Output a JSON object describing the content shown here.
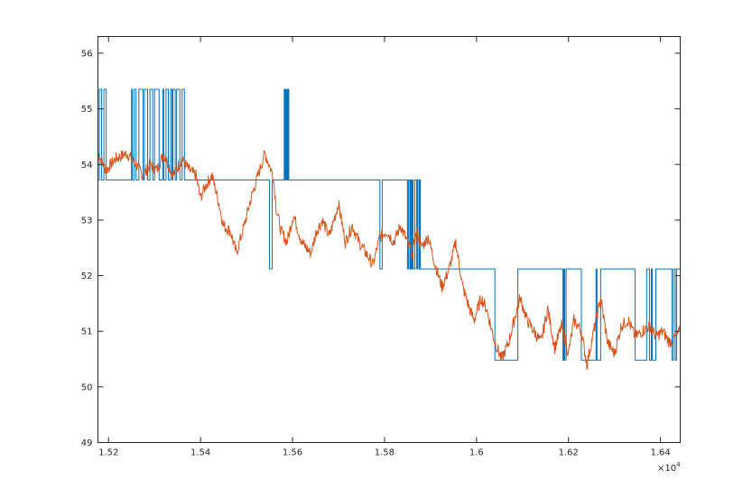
{
  "chart_data": {
    "type": "line",
    "title": "",
    "xlabel": "",
    "ylabel": "",
    "xlim": [
      15177,
      16443
    ],
    "ylim": [
      49,
      56.3
    ],
    "x_exponent_label": "×10",
    "x_exponent_power": "4",
    "x_ticks": [
      {
        "value": 15200,
        "label": "1.52"
      },
      {
        "value": 15400,
        "label": "1.54"
      },
      {
        "value": 15600,
        "label": "1.56"
      },
      {
        "value": 15800,
        "label": "1.58"
      },
      {
        "value": 16000,
        "label": "1.6"
      },
      {
        "value": 16200,
        "label": "1.62"
      },
      {
        "value": 16400,
        "label": "1.64"
      }
    ],
    "y_ticks": [
      {
        "value": 49,
        "label": "49"
      },
      {
        "value": 50,
        "label": "50"
      },
      {
        "value": 51,
        "label": "51"
      },
      {
        "value": 52,
        "label": "52"
      },
      {
        "value": 53,
        "label": "53"
      },
      {
        "value": 54,
        "label": "54"
      },
      {
        "value": 55,
        "label": "55"
      },
      {
        "value": 56,
        "label": "56"
      }
    ],
    "grid": false,
    "colors": {
      "series1": "#0072BD",
      "series2": "#D95319"
    },
    "series": [
      {
        "type": "step",
        "x": [
          15177,
          15180,
          15185,
          15188,
          15190,
          15195,
          15200,
          15206,
          15210,
          15250,
          15252,
          15256,
          15260,
          15266,
          15270,
          15275,
          15278,
          15280,
          15285,
          15290,
          15296,
          15300,
          15305,
          15310,
          15318,
          15320,
          15325,
          15330,
          15335,
          15338,
          15340,
          15345,
          15348,
          15350,
          15355,
          15360,
          15365,
          15370,
          15375,
          15385,
          15400,
          15548,
          15550,
          15556,
          15560,
          15580,
          15582,
          15584,
          15586,
          15588,
          15590,
          15592,
          15596,
          15600,
          15790,
          15795,
          15798,
          15800,
          15810,
          15850,
          15852,
          15855,
          15857,
          15858,
          15860,
          15862,
          15866,
          15870,
          15872,
          15874,
          15875,
          15876,
          15878,
          15880,
          15882,
          15885,
          15890,
          15900,
          15950,
          16040,
          16045,
          16050,
          16090,
          16100,
          16110,
          16186,
          16188,
          16190,
          16192,
          16195,
          16200,
          16226,
          16228,
          16260,
          16262,
          16268,
          16270,
          16300,
          16345,
          16370,
          16374,
          16376,
          16380,
          16382,
          16390,
          16400,
          16405,
          16412,
          16415,
          16420,
          16425,
          16428,
          16432,
          16435,
          16440,
          16443
        ],
        "y": [
          53.72,
          55.35,
          53.72,
          53.72,
          55.35,
          53.72,
          53.72,
          53.72,
          53.72,
          55.35,
          53.72,
          55.35,
          53.72,
          55.35,
          55.35,
          53.72,
          55.35,
          55.35,
          53.72,
          55.35,
          53.72,
          55.35,
          55.35,
          53.72,
          55.35,
          53.72,
          55.35,
          53.72,
          55.35,
          53.72,
          55.35,
          53.72,
          55.35,
          55.35,
          53.72,
          55.35,
          53.72,
          53.72,
          53.72,
          53.72,
          53.72,
          53.72,
          52.12,
          53.72,
          53.72,
          53.72,
          55.35,
          53.72,
          55.35,
          53.72,
          55.35,
          53.72,
          53.72,
          53.72,
          52.12,
          53.72,
          53.72,
          53.72,
          53.72,
          52.12,
          53.72,
          52.12,
          53.72,
          52.12,
          53.72,
          52.12,
          53.72,
          52.12,
          53.72,
          53.72,
          52.12,
          53.72,
          52.12,
          52.12,
          52.12,
          52.12,
          52.12,
          52.12,
          52.12,
          50.48,
          50.48,
          50.48,
          52.12,
          52.12,
          52.12,
          52.12,
          50.48,
          52.12,
          50.48,
          52.12,
          52.12,
          52.12,
          50.48,
          52.12,
          50.48,
          50.48,
          52.12,
          52.12,
          50.48,
          52.12,
          52.12,
          50.48,
          52.12,
          50.48,
          52.12,
          52.12,
          52.12,
          52.12,
          52.12,
          52.12,
          50.48,
          52.12,
          50.48,
          52.12,
          52.12,
          50.48
        ]
      },
      {
        "type": "line",
        "x": [
          15177,
          15195,
          15215,
          15240,
          15260,
          15275,
          15290,
          15305,
          15320,
          15340,
          15360,
          15375,
          15390,
          15400,
          15410,
          15425,
          15440,
          15450,
          15465,
          15478,
          15495,
          15510,
          15525,
          15540,
          15558,
          15565,
          15575,
          15588,
          15602,
          15620,
          15640,
          15652,
          15665,
          15680,
          15700,
          15715,
          15730,
          15745,
          15760,
          15775,
          15790,
          15805,
          15820,
          15835,
          15850,
          15860,
          15870,
          15880,
          15895,
          15910,
          15925,
          15940,
          15955,
          15970,
          15985,
          15995,
          16010,
          16022,
          16040,
          16055,
          16070,
          16085,
          16095,
          16110,
          16125,
          16140,
          16155,
          16170,
          16185,
          16200,
          16212,
          16228,
          16240,
          16255,
          16270,
          16285,
          16300,
          16315,
          16330,
          16345,
          16360,
          16378,
          16390,
          16405,
          16420,
          16433,
          16443
        ],
        "y": [
          54.2,
          53.9,
          54.1,
          54.2,
          54.0,
          53.8,
          54.0,
          53.9,
          54.2,
          53.8,
          54.1,
          53.9,
          53.8,
          53.4,
          53.6,
          53.8,
          53.3,
          52.9,
          52.8,
          52.4,
          52.9,
          53.4,
          53.8,
          54.2,
          53.8,
          53.2,
          52.8,
          52.6,
          53.1,
          52.6,
          52.4,
          52.8,
          53.0,
          52.7,
          53.3,
          52.6,
          52.9,
          52.6,
          52.4,
          52.2,
          52.7,
          52.8,
          52.6,
          52.9,
          52.6,
          52.4,
          52.8,
          52.5,
          52.7,
          52.2,
          51.8,
          52.1,
          52.6,
          51.8,
          51.4,
          51.2,
          51.6,
          51.4,
          50.8,
          50.5,
          50.8,
          51.3,
          51.6,
          51.2,
          51.0,
          50.8,
          51.4,
          50.7,
          51.1,
          50.6,
          51.2,
          51.0,
          50.4,
          51.0,
          51.6,
          50.8,
          50.6,
          51.1,
          51.2,
          50.9,
          51.0,
          51.1,
          50.9,
          51.0,
          50.8,
          50.9,
          51.0
        ]
      }
    ]
  }
}
